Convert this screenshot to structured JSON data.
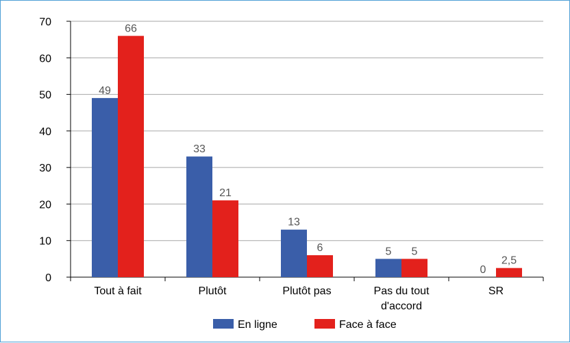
{
  "chart_data": {
    "type": "bar",
    "categories": [
      [
        "Tout à fait"
      ],
      [
        "Plutôt"
      ],
      [
        "Plutôt pas"
      ],
      [
        "Pas du tout",
        "d'accord"
      ],
      [
        "SR"
      ]
    ],
    "series": [
      {
        "name": "En ligne",
        "color": "#3a5ea9",
        "values": [
          49,
          33,
          13,
          5,
          0
        ],
        "labels": [
          "49",
          "33",
          "13",
          "5",
          "0"
        ]
      },
      {
        "name": "Face à face",
        "color": "#e3211c",
        "values": [
          66,
          21,
          6,
          5,
          2.5
        ],
        "labels": [
          "66",
          "21",
          "6",
          "5",
          "2,5"
        ]
      }
    ],
    "ylim": [
      0,
      70
    ],
    "yticks": [
      0,
      10,
      20,
      30,
      40,
      50,
      60,
      70
    ],
    "grid": true,
    "legend_position": "bottom"
  }
}
